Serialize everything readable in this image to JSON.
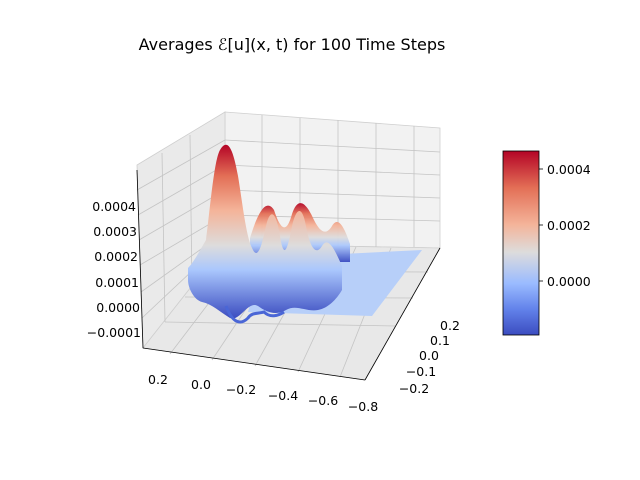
{
  "chart_data": {
    "type": "surface",
    "title": "Averages ℰ[u](x, t) for 100 Time Steps",
    "xlabel": "",
    "ylabel": "",
    "zlabel": "",
    "x_ticks": [
      "0.2",
      "0.0",
      "−0.2",
      "−0.4",
      "−0.6",
      "−0.8"
    ],
    "y_ticks": [
      "−0.2",
      "−0.1",
      "0.0",
      "0.1",
      "0.2"
    ],
    "z_ticks": [
      "−0.0001",
      "0.0000",
      "0.0001",
      "0.0002",
      "0.0003",
      "0.0004"
    ],
    "xlim": [
      -0.8,
      0.3
    ],
    "ylim": [
      -0.25,
      0.25
    ],
    "zlim": [
      -0.00018,
      0.00047
    ],
    "colormap": "coolwarm",
    "colorbar": {
      "ticks": [
        "0.0000",
        "0.0002",
        "0.0004"
      ],
      "range": [
        -0.00018,
        0.00047
      ]
    },
    "surface_peaks": [
      {
        "x": 0.18,
        "z": 0.00047
      },
      {
        "x": 0.05,
        "z": 0.00022
      },
      {
        "x": -0.1,
        "z": 0.00018
      },
      {
        "x": -0.22,
        "z": 0.00016
      },
      {
        "x": -0.34,
        "z": 0.00012
      }
    ],
    "plateau_value": 0.0,
    "grid": true
  }
}
